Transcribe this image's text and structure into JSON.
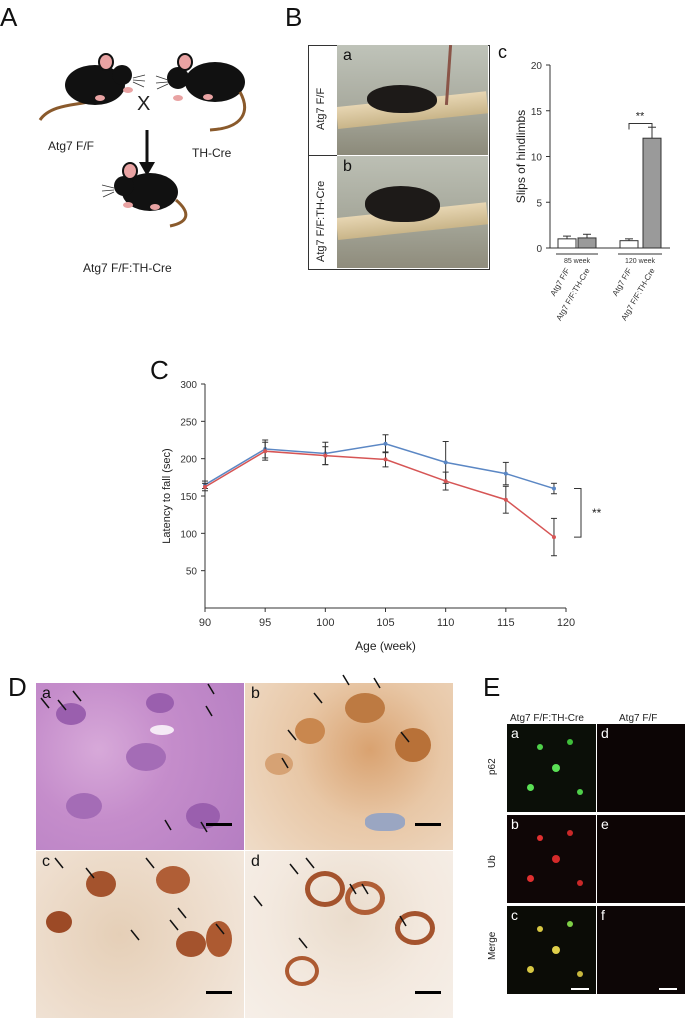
{
  "panelA": {
    "label": "A",
    "mouse_left": "Atg7 F/F",
    "mouse_right": "TH-Cre",
    "cross": "X",
    "offspring": "Atg7 F/F:TH-Cre"
  },
  "panelB": {
    "label": "B",
    "photo_a_tag": "a",
    "photo_b_tag": "b",
    "row_a": "Atg7 F/F",
    "row_b": "Atg7 F/F:TH-Cre"
  },
  "panelBc": {
    "label": "c",
    "chart_data": {
      "type": "bar",
      "ylabel": "Slips of hindlimbs",
      "ylim": [
        0,
        20
      ],
      "yticks": [
        "0",
        "5",
        "10",
        "15",
        "20"
      ],
      "groups": [
        "85 week",
        "120 week"
      ],
      "categories": [
        "Atg7 F/F",
        "Atg7 F/F:TH-Cre",
        "Atg7 F/F",
        "Atg7 F/F:TH-Cre"
      ],
      "values": [
        1.0,
        1.1,
        0.8,
        12.0
      ],
      "errors": [
        0.3,
        0.4,
        0.2,
        1.2
      ],
      "colors": [
        "#ffffff",
        "#9a9a9a",
        "#ffffff",
        "#9a9a9a"
      ],
      "significance": "**"
    }
  },
  "panelC": {
    "label": "C",
    "chart_data": {
      "type": "line",
      "xlabel": "Age (week)",
      "ylabel": "Latency to fall (sec)",
      "xlim": [
        90,
        120
      ],
      "ylim": [
        0,
        300
      ],
      "xticks": [
        "90",
        "95",
        "100",
        "105",
        "110",
        "115",
        "120"
      ],
      "yticks": [
        "50",
        "100",
        "150",
        "200",
        "250",
        "300"
      ],
      "x": [
        90,
        95,
        100,
        105,
        110,
        115,
        119
      ],
      "series": [
        {
          "color": "#5b87c4",
          "values": [
            165,
            213,
            207,
            220,
            195,
            180,
            160
          ],
          "errors": [
            5,
            12,
            15,
            12,
            28,
            15,
            7
          ]
        },
        {
          "color": "#d65555",
          "values": [
            162,
            210,
            204,
            199,
            170,
            145,
            95
          ],
          "errors": [
            5,
            12,
            12,
            10,
            12,
            18,
            25
          ]
        }
      ],
      "significance": "**"
    }
  },
  "panelD": {
    "label": "D",
    "tiles": [
      "a",
      "b",
      "c",
      "d"
    ]
  },
  "panelE": {
    "label": "E",
    "col_left": "Atg7 F/F:TH-Cre",
    "col_right": "Atg7 F/F",
    "rows": [
      "p62",
      "Ub",
      "Merge"
    ],
    "tiles_left": [
      "a",
      "b",
      "c"
    ],
    "tiles_right": [
      "d",
      "e",
      "f"
    ]
  }
}
